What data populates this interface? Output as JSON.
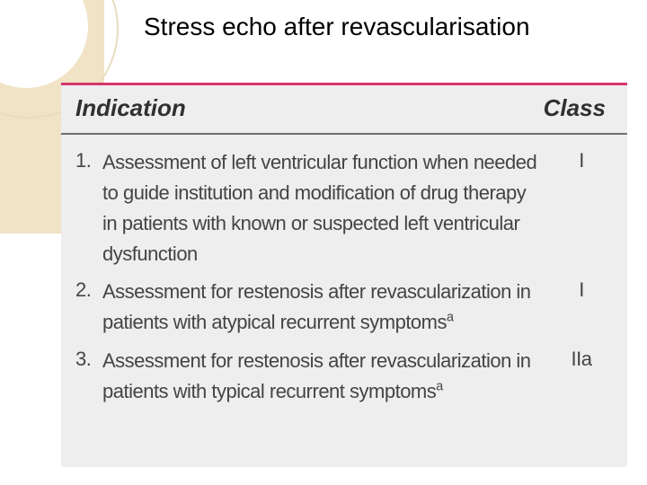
{
  "title": "Stress echo after revascularisation",
  "decor": {
    "band_color": "#f1e3c5",
    "circle_outer_border": "#e8ddbf",
    "circle_inner_fill": "#ffffff"
  },
  "table": {
    "border_top_color": "#d6366d",
    "header_rule_color": "#707070",
    "background_color": "#eeeeee",
    "header": {
      "indication_label": "Indication",
      "class_label": "Class",
      "font_style": "bold italic",
      "font_size_pt": 20
    },
    "body_font_size_pt": 17,
    "body_text_color": "#444444",
    "rows": [
      {
        "num": "1.",
        "text": "Assessment of left ventricular function when needed to guide institution and modification of drug therapy in patients with known or suspected left ventricular dysfunction",
        "class": "I",
        "superscript": false
      },
      {
        "num": "2.",
        "text": "Assessment for restenosis after revascularization in patients with atypical recurrent symptoms",
        "class": "I",
        "superscript": true
      },
      {
        "num": "3.",
        "text": "Assessment for restenosis after revascularization in patients with typical recurrent symptoms",
        "class": "IIa",
        "superscript": true
      }
    ]
  }
}
